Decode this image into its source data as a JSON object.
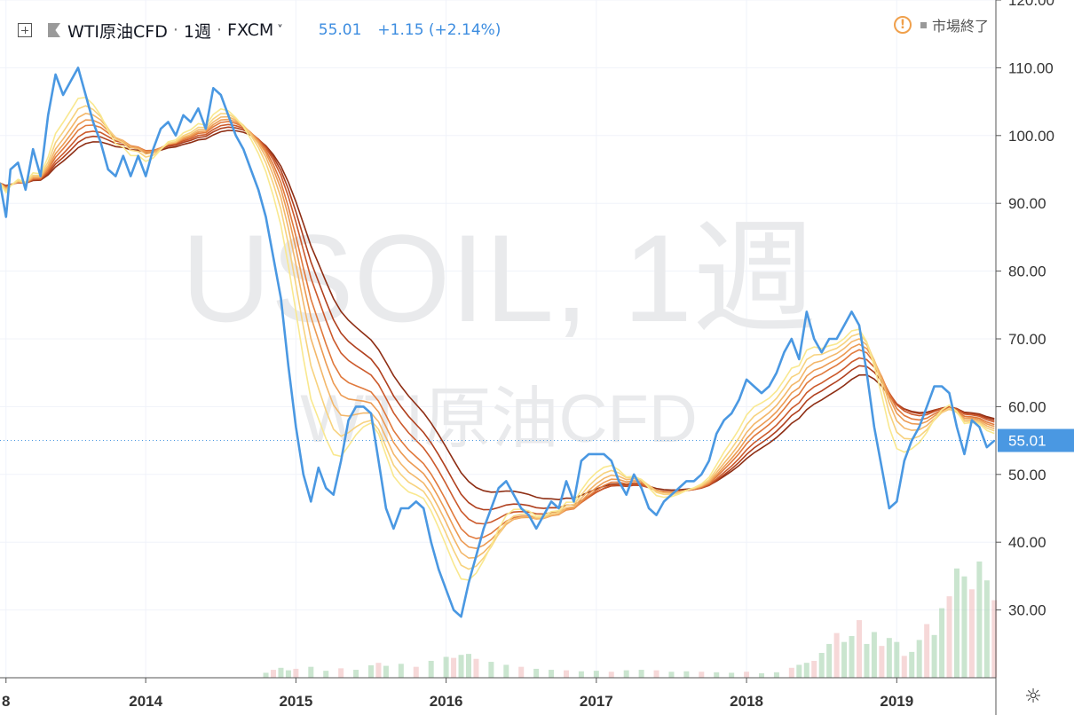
{
  "header": {
    "symbol": "WTI原油CFD",
    "interval": "1週",
    "exchange": "FXCM",
    "price": "55.01",
    "change": "+1.15 (+2.14%)",
    "status": "市場終了"
  },
  "watermark": {
    "main": "USOIL, 1週",
    "sub": "WTI原油CFD"
  },
  "colors": {
    "price_line": "#4a98e2",
    "ribbon": [
      "#8e2e14",
      "#b0401e",
      "#cc5a2c",
      "#e0793c",
      "#ec9a52",
      "#f3b76a",
      "#f7d27e",
      "#f9e88f"
    ],
    "vol_up": "#9fcfa8",
    "vol_down": "#efb8b8"
  },
  "chart_data": {
    "type": "line",
    "ylim": [
      20,
      120
    ],
    "y_ticks": [
      "30.00",
      "40.00",
      "50.00",
      "60.00",
      "70.00",
      "80.00",
      "90.00",
      "100.00",
      "110.00",
      "120.00"
    ],
    "x_ticks": [
      "8",
      "2014",
      "2015",
      "2016",
      "2017",
      "2018",
      "2019"
    ],
    "x_tick_years": [
      2013.07,
      2014.0,
      2015.0,
      2016.0,
      2017.0,
      2018.0,
      2019.0
    ],
    "xlim": [
      2013.03,
      2019.66
    ],
    "last_price": 55.01,
    "last_price_label": "55.01",
    "price_series": [
      [
        2013.03,
        93
      ],
      [
        2013.07,
        88
      ],
      [
        2013.1,
        95
      ],
      [
        2013.15,
        96
      ],
      [
        2013.2,
        92
      ],
      [
        2013.25,
        98
      ],
      [
        2013.3,
        94
      ],
      [
        2013.35,
        103
      ],
      [
        2013.4,
        109
      ],
      [
        2013.45,
        106
      ],
      [
        2013.5,
        108
      ],
      [
        2013.55,
        110
      ],
      [
        2013.6,
        106
      ],
      [
        2013.65,
        102
      ],
      [
        2013.7,
        99
      ],
      [
        2013.75,
        95
      ],
      [
        2013.8,
        94
      ],
      [
        2013.85,
        97
      ],
      [
        2013.9,
        94
      ],
      [
        2013.95,
        97
      ],
      [
        2014.0,
        94
      ],
      [
        2014.05,
        98
      ],
      [
        2014.1,
        101
      ],
      [
        2014.15,
        102
      ],
      [
        2014.2,
        100
      ],
      [
        2014.25,
        103
      ],
      [
        2014.3,
        102
      ],
      [
        2014.35,
        104
      ],
      [
        2014.4,
        101
      ],
      [
        2014.45,
        107
      ],
      [
        2014.5,
        106
      ],
      [
        2014.55,
        103
      ],
      [
        2014.6,
        100
      ],
      [
        2014.65,
        98
      ],
      [
        2014.7,
        95
      ],
      [
        2014.75,
        92
      ],
      [
        2014.8,
        88
      ],
      [
        2014.85,
        82
      ],
      [
        2014.9,
        76
      ],
      [
        2014.95,
        66
      ],
      [
        2015.0,
        57
      ],
      [
        2015.05,
        50
      ],
      [
        2015.1,
        46
      ],
      [
        2015.15,
        51
      ],
      [
        2015.2,
        48
      ],
      [
        2015.25,
        47
      ],
      [
        2015.3,
        52
      ],
      [
        2015.35,
        58
      ],
      [
        2015.4,
        60
      ],
      [
        2015.45,
        60
      ],
      [
        2015.5,
        59
      ],
      [
        2015.55,
        52
      ],
      [
        2015.6,
        45
      ],
      [
        2015.65,
        42
      ],
      [
        2015.7,
        45
      ],
      [
        2015.75,
        45
      ],
      [
        2015.8,
        46
      ],
      [
        2015.85,
        45
      ],
      [
        2015.9,
        40
      ],
      [
        2015.95,
        36
      ],
      [
        2016.0,
        33
      ],
      [
        2016.05,
        30
      ],
      [
        2016.1,
        29
      ],
      [
        2016.15,
        34
      ],
      [
        2016.2,
        38
      ],
      [
        2016.25,
        42
      ],
      [
        2016.3,
        45
      ],
      [
        2016.35,
        48
      ],
      [
        2016.4,
        49
      ],
      [
        2016.45,
        47
      ],
      [
        2016.5,
        45
      ],
      [
        2016.55,
        44
      ],
      [
        2016.6,
        42
      ],
      [
        2016.65,
        44
      ],
      [
        2016.7,
        46
      ],
      [
        2016.75,
        45
      ],
      [
        2016.8,
        49
      ],
      [
        2016.85,
        46
      ],
      [
        2016.9,
        52
      ],
      [
        2016.95,
        53
      ],
      [
        2017.0,
        53
      ],
      [
        2017.05,
        53
      ],
      [
        2017.1,
        52
      ],
      [
        2017.15,
        49
      ],
      [
        2017.2,
        47
      ],
      [
        2017.25,
        50
      ],
      [
        2017.3,
        48
      ],
      [
        2017.35,
        45
      ],
      [
        2017.4,
        44
      ],
      [
        2017.45,
        46
      ],
      [
        2017.5,
        47
      ],
      [
        2017.55,
        48
      ],
      [
        2017.6,
        49
      ],
      [
        2017.65,
        49
      ],
      [
        2017.7,
        50
      ],
      [
        2017.75,
        52
      ],
      [
        2017.8,
        56
      ],
      [
        2017.85,
        58
      ],
      [
        2017.9,
        59
      ],
      [
        2017.95,
        61
      ],
      [
        2018.0,
        64
      ],
      [
        2018.05,
        63
      ],
      [
        2018.1,
        62
      ],
      [
        2018.15,
        63
      ],
      [
        2018.2,
        65
      ],
      [
        2018.25,
        68
      ],
      [
        2018.3,
        70
      ],
      [
        2018.35,
        67
      ],
      [
        2018.4,
        74
      ],
      [
        2018.45,
        70
      ],
      [
        2018.5,
        68
      ],
      [
        2018.55,
        70
      ],
      [
        2018.6,
        70
      ],
      [
        2018.65,
        72
      ],
      [
        2018.7,
        74
      ],
      [
        2018.75,
        72
      ],
      [
        2018.8,
        65
      ],
      [
        2018.85,
        57
      ],
      [
        2018.9,
        51
      ],
      [
        2018.95,
        45
      ],
      [
        2019.0,
        46
      ],
      [
        2019.05,
        52
      ],
      [
        2019.1,
        55
      ],
      [
        2019.15,
        57
      ],
      [
        2019.2,
        60
      ],
      [
        2019.25,
        63
      ],
      [
        2019.3,
        63
      ],
      [
        2019.35,
        62
      ],
      [
        2019.4,
        57
      ],
      [
        2019.45,
        53
      ],
      [
        2019.5,
        58
      ],
      [
        2019.55,
        57
      ],
      [
        2019.6,
        54
      ],
      [
        2019.65,
        55
      ]
    ],
    "volume_series": [
      [
        2014.8,
        1.0
      ],
      [
        2014.85,
        1.6
      ],
      [
        2014.9,
        2.0
      ],
      [
        2014.95,
        1.5
      ],
      [
        2015.0,
        1.8
      ],
      [
        2015.1,
        2.2
      ],
      [
        2015.2,
        1.4
      ],
      [
        2015.3,
        1.9
      ],
      [
        2015.4,
        1.6
      ],
      [
        2015.5,
        2.5
      ],
      [
        2015.55,
        3.0
      ],
      [
        2015.6,
        2.4
      ],
      [
        2015.7,
        2.8
      ],
      [
        2015.8,
        2.2
      ],
      [
        2015.9,
        3.4
      ],
      [
        2016.0,
        4.2
      ],
      [
        2016.05,
        4.0
      ],
      [
        2016.1,
        4.6
      ],
      [
        2016.15,
        4.8
      ],
      [
        2016.2,
        3.8
      ],
      [
        2016.3,
        3.2
      ],
      [
        2016.4,
        2.6
      ],
      [
        2016.5,
        2.2
      ],
      [
        2016.6,
        1.8
      ],
      [
        2016.7,
        1.6
      ],
      [
        2016.8,
        1.5
      ],
      [
        2016.9,
        1.3
      ],
      [
        2017.0,
        1.4
      ],
      [
        2017.1,
        1.2
      ],
      [
        2017.2,
        1.5
      ],
      [
        2017.3,
        1.6
      ],
      [
        2017.4,
        1.5
      ],
      [
        2017.5,
        1.2
      ],
      [
        2017.6,
        1.3
      ],
      [
        2017.7,
        1.2
      ],
      [
        2017.8,
        1.1
      ],
      [
        2017.9,
        1.0
      ],
      [
        2018.0,
        1.2
      ],
      [
        2018.1,
        0.9
      ],
      [
        2018.2,
        1.1
      ],
      [
        2018.3,
        2.0
      ],
      [
        2018.35,
        2.6
      ],
      [
        2018.4,
        3.0
      ],
      [
        2018.45,
        3.4
      ],
      [
        2018.5,
        5.0
      ],
      [
        2018.55,
        6.8
      ],
      [
        2018.6,
        9.0
      ],
      [
        2018.65,
        7.2
      ],
      [
        2018.7,
        8.4
      ],
      [
        2018.75,
        11.6
      ],
      [
        2018.8,
        6.8
      ],
      [
        2018.85,
        9.2
      ],
      [
        2018.9,
        6.4
      ],
      [
        2018.95,
        8.0
      ],
      [
        2019.0,
        7.2
      ],
      [
        2019.05,
        4.4
      ],
      [
        2019.1,
        5.2
      ],
      [
        2019.15,
        7.6
      ],
      [
        2019.2,
        10.8
      ],
      [
        2019.25,
        8.6
      ],
      [
        2019.3,
        14.0
      ],
      [
        2019.35,
        16.4
      ],
      [
        2019.4,
        22.0
      ],
      [
        2019.45,
        20.4
      ],
      [
        2019.5,
        17.8
      ],
      [
        2019.55,
        23.4
      ],
      [
        2019.6,
        19.6
      ],
      [
        2019.65,
        15.6
      ]
    ]
  }
}
